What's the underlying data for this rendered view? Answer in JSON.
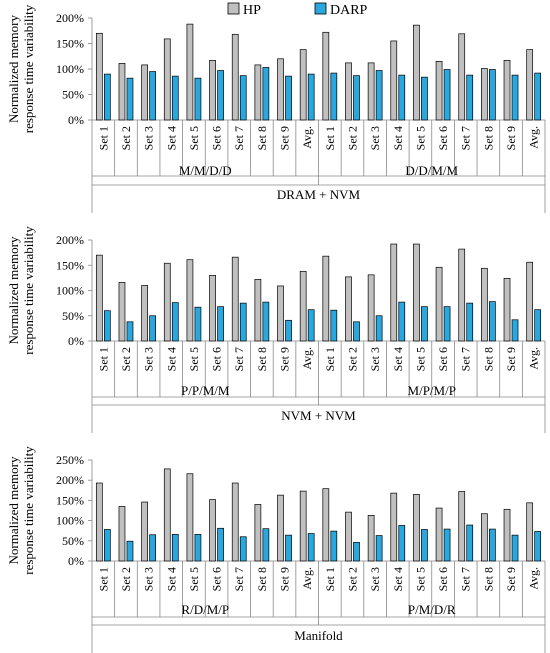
{
  "legend": {
    "items": [
      {
        "name": "HP",
        "color": "#c0c0c0"
      },
      {
        "name": "DARP",
        "color": "#29a8e0"
      }
    ],
    "placement": "top-center"
  },
  "chart_data": [
    {
      "type": "bar",
      "ylabel": "Normalized memory response time variability",
      "ylim": [
        0,
        2.0
      ],
      "yticks": [
        "0%",
        "50%",
        "100%",
        "150%",
        "200%"
      ],
      "categories": [
        "Set 1",
        "Set 2",
        "Set 3",
        "Set 4",
        "Set 5",
        "Set 6",
        "Set 7",
        "Set 8",
        "Set 9",
        "Avg.",
        "Set 1",
        "Set 2",
        "Set 3",
        "Set 4",
        "Set 5",
        "Set 6",
        "Set 7",
        "Set 8",
        "Set 9",
        "Avg."
      ],
      "groups": [
        "M/M/D/D",
        "D/D/M/M"
      ],
      "section": "DRAM + NVM",
      "grid": false,
      "series": [
        {
          "name": "HP",
          "color": "#c0c0c0",
          "values": [
            1.7,
            1.11,
            1.08,
            1.59,
            1.88,
            1.17,
            1.68,
            1.08,
            1.2,
            1.38,
            1.72,
            1.12,
            1.12,
            1.55,
            1.86,
            1.15,
            1.69,
            1.01,
            1.17,
            1.38
          ]
        },
        {
          "name": "DARP",
          "color": "#29a8e0",
          "values": [
            0.9,
            0.82,
            0.95,
            0.86,
            0.82,
            0.97,
            0.87,
            1.03,
            0.86,
            0.9,
            0.92,
            0.87,
            0.97,
            0.88,
            0.84,
            0.99,
            0.88,
            0.99,
            0.88,
            0.92
          ]
        }
      ]
    },
    {
      "type": "bar",
      "ylabel": "Normalized memory response time variability",
      "ylim": [
        0,
        2.0
      ],
      "yticks": [
        "0%",
        "50%",
        "100%",
        "150%",
        "200%"
      ],
      "categories": [
        "Set 1",
        "Set 2",
        "Set 3",
        "Set 4",
        "Set 5",
        "Set 6",
        "Set 7",
        "Set 8",
        "Set 9",
        "Avg.",
        "Set 1",
        "Set 2",
        "Set 3",
        "Set 4",
        "Set 5",
        "Set 6",
        "Set 7",
        "Set 8",
        "Set 9",
        "Avg."
      ],
      "groups": [
        "P/P/M/M",
        "M/P/M/P"
      ],
      "section": "NVM + NVM",
      "grid": false,
      "series": [
        {
          "name": "HP",
          "color": "#c0c0c0",
          "values": [
            1.7,
            1.16,
            1.1,
            1.54,
            1.61,
            1.3,
            1.66,
            1.22,
            1.09,
            1.38,
            1.68,
            1.27,
            1.31,
            1.92,
            1.92,
            1.46,
            1.82,
            1.44,
            1.24,
            1.56
          ]
        },
        {
          "name": "DARP",
          "color": "#29a8e0",
          "values": [
            0.6,
            0.38,
            0.5,
            0.76,
            0.67,
            0.68,
            0.75,
            0.77,
            0.41,
            0.62,
            0.61,
            0.38,
            0.5,
            0.77,
            0.68,
            0.68,
            0.75,
            0.78,
            0.42,
            0.62
          ]
        }
      ]
    },
    {
      "type": "bar",
      "ylabel": "Normalized memory response time variability",
      "ylim": [
        0,
        2.5
      ],
      "yticks": [
        "0%",
        "50%",
        "100%",
        "150%",
        "200%",
        "250%"
      ],
      "categories": [
        "Set 1",
        "Set 2",
        "Set 3",
        "Set 4",
        "Set 5",
        "Set 6",
        "Set 7",
        "Set 8",
        "Set 9",
        "Avg.",
        "Set 1",
        "Set 2",
        "Set 3",
        "Set 4",
        "Set 5",
        "Set 6",
        "Set 7",
        "Set 8",
        "Set 9",
        "Avg."
      ],
      "groups": [
        "R/D/M/P",
        "P/M/D/R"
      ],
      "section": "Manifold",
      "grid": false,
      "series": [
        {
          "name": "HP",
          "color": "#c0c0c0",
          "values": [
            1.93,
            1.35,
            1.46,
            2.28,
            2.16,
            1.52,
            1.93,
            1.4,
            1.63,
            1.73,
            1.79,
            1.21,
            1.13,
            1.68,
            1.65,
            1.31,
            1.72,
            1.17,
            1.28,
            1.44
          ]
        },
        {
          "name": "DARP",
          "color": "#29a8e0",
          "values": [
            0.78,
            0.49,
            0.65,
            0.66,
            0.66,
            0.81,
            0.6,
            0.8,
            0.64,
            0.68,
            0.74,
            0.46,
            0.63,
            0.88,
            0.78,
            0.79,
            0.89,
            0.79,
            0.64,
            0.73
          ]
        }
      ]
    }
  ]
}
